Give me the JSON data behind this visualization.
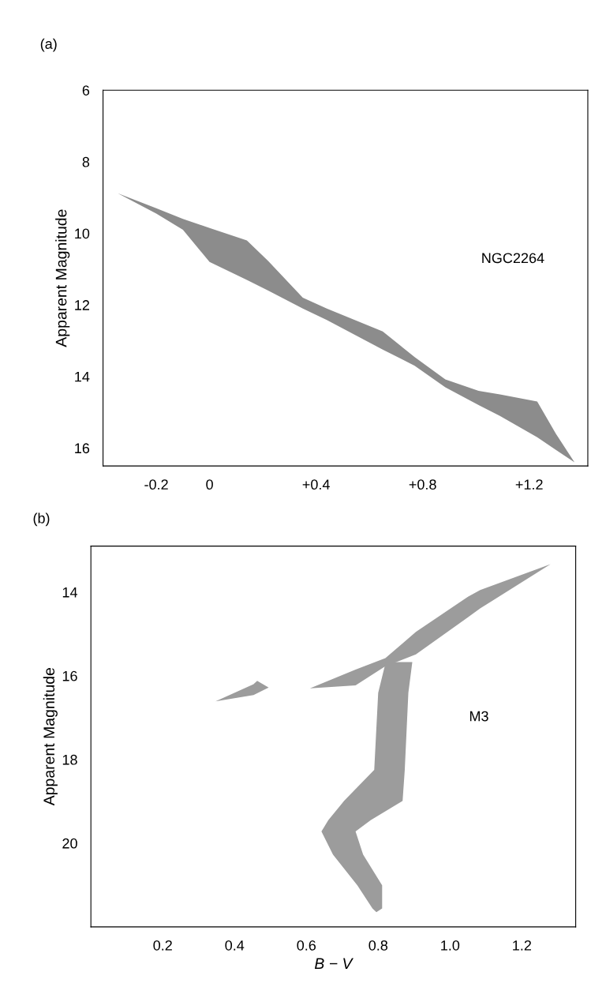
{
  "chart_data": [
    {
      "type": "area",
      "annotations": [
        "(a)",
        "NGC2264"
      ],
      "ylabel": "Apparent Magnitude",
      "xlim": [
        -0.4,
        1.42
      ],
      "ylim": [
        16.5,
        6
      ],
      "xticks": [
        {
          "value": -0.2,
          "label": "-0.2"
        },
        0,
        {
          "value": 0.4,
          "label": "+0.4"
        },
        {
          "value": 0.8,
          "label": "+0.8"
        },
        {
          "value": 1.2,
          "label": "+1.2"
        }
      ],
      "yticks": [
        6,
        8,
        10,
        12,
        14,
        16
      ],
      "grid": false,
      "series": [
        {
          "color": "#8c8c8c",
          "x": [
            -0.345,
            -0.2,
            -0.1,
            0,
            0.14,
            0.22,
            0.35,
            0.44,
            0.65,
            0.77,
            0.885,
            1.01,
            1.09,
            1.23,
            1.3,
            1.37,
            1.3,
            1.23,
            1.09,
            1.01,
            0.885,
            0.77,
            0.65,
            0.44,
            0.35,
            0.22,
            0.14,
            0,
            -0.1,
            -0.2
          ],
          "values": [
            8.88,
            9.3,
            9.6,
            9.85,
            10.2,
            10.77,
            11.8,
            12.1,
            12.74,
            13.46,
            14.08,
            14.4,
            14.5,
            14.7,
            15.6,
            16.4,
            16.05,
            15.7,
            15.1,
            14.8,
            14.3,
            13.7,
            13.25,
            12.42,
            12.1,
            11.6,
            11.3,
            10.8,
            9.9,
            9.45
          ]
        }
      ]
    },
    {
      "type": "area",
      "annotations": [
        "(b)",
        "M3"
      ],
      "xlabel": "B − V",
      "ylabel": "Apparent Magnitude",
      "xlim": [
        0,
        1.35
      ],
      "ylim": [
        22,
        12.9
      ],
      "xticks": [
        0.2,
        0.4,
        0.6,
        0.8,
        {
          "value": 1.0,
          "label": "1.0"
        },
        1.2
      ],
      "yticks": [
        14,
        16,
        18,
        20
      ],
      "grid": false,
      "series": [
        {
          "color": "#9c9c9c",
          "x": [
            0.347,
            0.453,
            0.463,
            0.495,
            0.453
          ],
          "values": [
            16.61,
            16.2,
            16.12,
            16.28,
            16.46
          ]
        },
        {
          "color": "#9c9c9c",
          "x": [
            0.61,
            0.737,
            0.82,
            0.905,
            1.05,
            1.084,
            1.28,
            1.084,
            1.05,
            0.905,
            0.82,
            0.737
          ],
          "values": [
            16.3,
            15.85,
            15.58,
            14.95,
            14.11,
            13.95,
            13.33,
            14.39,
            14.6,
            15.49,
            15.77,
            16.23
          ]
        },
        {
          "color": "#9c9c9c",
          "x": [
            0.821,
            0.8,
            0.789,
            0.705,
            0.661,
            0.642,
            0.674,
            0.742,
            0.784,
            0.795,
            0.811,
            0.811,
            0.758,
            0.737,
            0.779,
            0.868,
            0.874,
            0.884,
            0.895
          ],
          "values": [
            15.67,
            16.41,
            18.25,
            18.99,
            19.45,
            19.72,
            20.27,
            21.01,
            21.56,
            21.65,
            21.56,
            21.01,
            20.27,
            19.72,
            19.45,
            18.99,
            18.25,
            16.41,
            15.67
          ]
        }
      ]
    }
  ]
}
